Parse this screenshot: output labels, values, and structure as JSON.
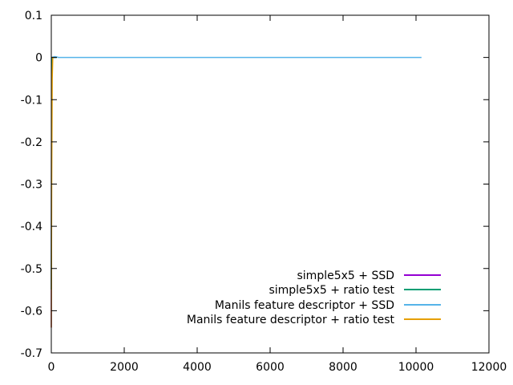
{
  "chart_data": {
    "type": "line",
    "title": "",
    "xlabel": "",
    "ylabel": "",
    "xlim": [
      0,
      12000
    ],
    "ylim": [
      -0.7,
      0.1
    ],
    "x_ticks": [
      0,
      2000,
      4000,
      6000,
      8000,
      10000,
      12000
    ],
    "x_tick_labels": [
      "0",
      "2000",
      "4000",
      "6000",
      "8000",
      "10000",
      "12000"
    ],
    "y_ticks": [
      0.1,
      0,
      -0.1,
      -0.2,
      -0.3,
      -0.4,
      -0.5,
      -0.6,
      -0.7
    ],
    "y_tick_labels": [
      "0.1",
      "0",
      "-0.1",
      "-0.2",
      "-0.3",
      "-0.4",
      "-0.5",
      "-0.6",
      "-0.7"
    ],
    "grid": false,
    "legend_position": "bottom-right",
    "series": [
      {
        "name": "simple5x5 + SSD",
        "color": "#9400d3",
        "points": [
          [
            0,
            -0.64
          ],
          [
            5,
            -0.2
          ],
          [
            12,
            -0.02
          ],
          [
            20,
            0
          ],
          [
            60,
            0
          ],
          [
            100,
            0
          ]
        ]
      },
      {
        "name": "simple5x5 + ratio test",
        "color": "#009e73",
        "points": [
          [
            0,
            -0.55
          ],
          [
            8,
            -0.05
          ],
          [
            20,
            0
          ],
          [
            60,
            0
          ],
          [
            150,
            0
          ]
        ]
      },
      {
        "name": "Manils feature descriptor + SSD",
        "color": "#56b4e9",
        "points": [
          [
            0,
            0
          ],
          [
            100,
            0.002
          ],
          [
            200,
            0
          ],
          [
            1000,
            0
          ],
          [
            5000,
            0
          ],
          [
            10150,
            0
          ]
        ]
      },
      {
        "name": "Manils feature descriptor + ratio test",
        "color": "#e69f00",
        "points": [
          [
            0,
            -0.64
          ],
          [
            10,
            -0.3
          ],
          [
            25,
            -0.05
          ],
          [
            40,
            0
          ],
          [
            60,
            0
          ]
        ]
      }
    ]
  }
}
